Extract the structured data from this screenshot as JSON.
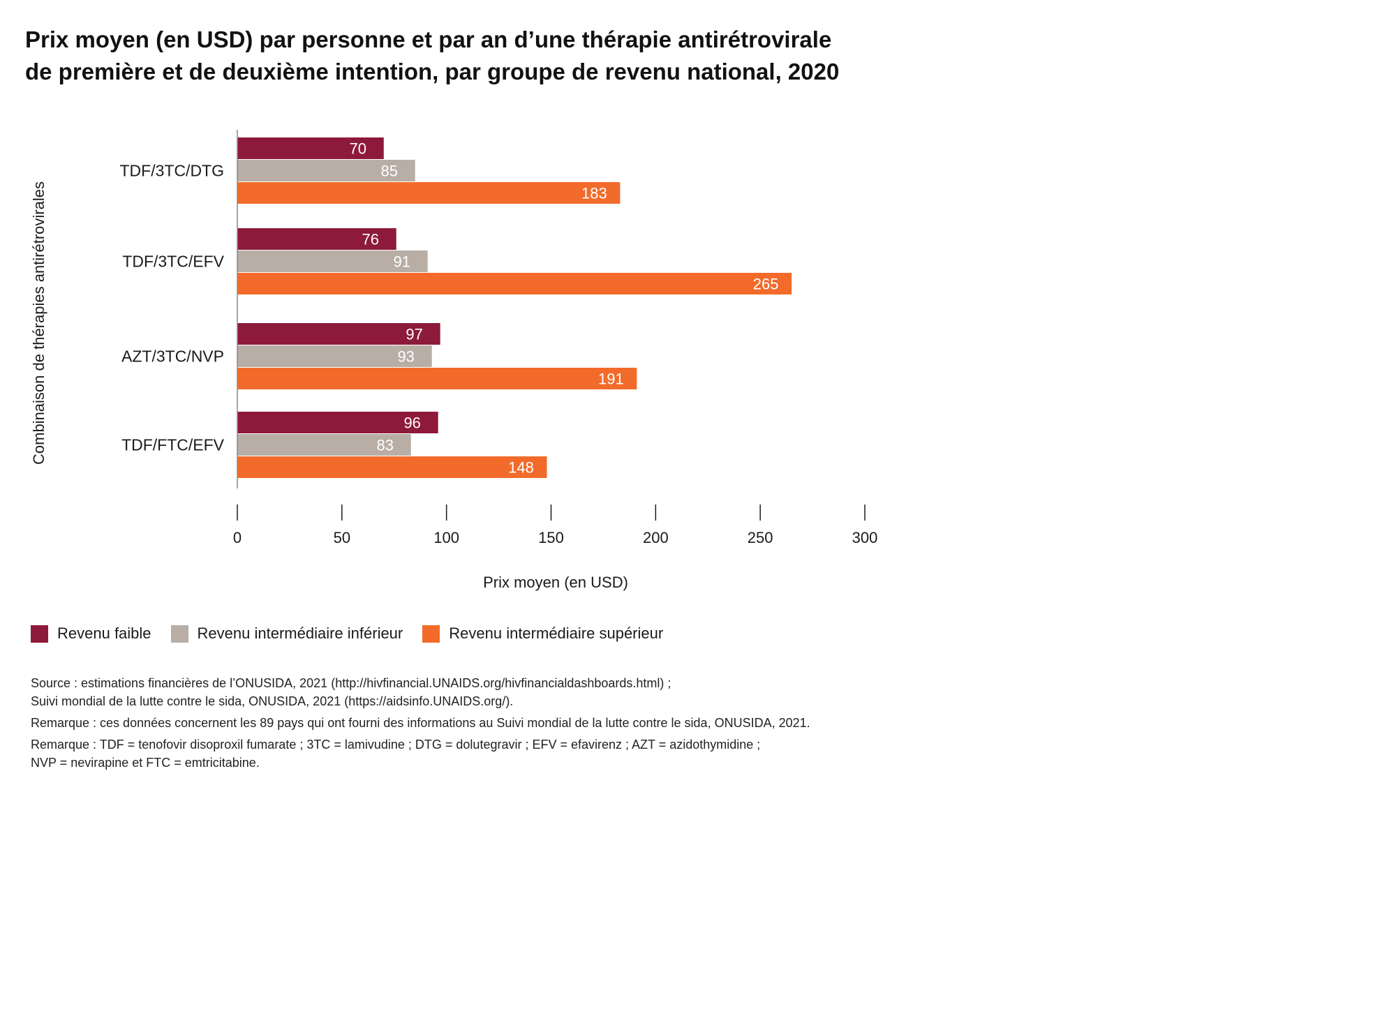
{
  "title": {
    "line1": "Prix moyen (en USD) par personne et par an d’une thérapie antirétrovirale",
    "line2": "de première et de deuxième intention, par groupe de revenu national, 2020"
  },
  "chart_data": {
    "type": "bar",
    "orientation": "horizontal",
    "categories": [
      "TDF/3TC/DTG",
      "TDF/3TC/EFV",
      "AZT/3TC/NVP",
      "TDF/FTC/EFV"
    ],
    "series": [
      {
        "name": "Revenu faible",
        "color": "#8e1a3b",
        "values": [
          70,
          76,
          97,
          96
        ]
      },
      {
        "name": "Revenu intermédiaire inférieur",
        "color": "#b8aea6",
        "values": [
          85,
          91,
          93,
          83
        ]
      },
      {
        "name": "Revenu intermédiaire supérieur",
        "color": "#f26b2a",
        "values": [
          183,
          265,
          191,
          148
        ]
      }
    ],
    "xlabel": "Prix moyen (en USD)",
    "ylabel": "Combinaison de thérapies antirétrovirales",
    "xlim": [
      0,
      300
    ],
    "xticks": [
      0,
      50,
      100,
      150,
      200,
      250,
      300
    ],
    "grid": false,
    "legend_position": "bottom-left"
  },
  "notes": {
    "source1": "Source : estimations financières de l’ONUSIDA, 2021 (http://hivfinancial.UNAIDS.org/hivfinancialdashboards.html) ;",
    "source2": "Suivi mondial de la lutte contre le sida, ONUSIDA, 2021 (https://aidsinfo.UNAIDS.org/).",
    "remark1": "Remarque : ces données concernent les 89 pays qui ont fourni des informations au Suivi mondial de la lutte contre le sida, ONUSIDA, 2021.",
    "remark2a": "Remarque : TDF = tenofovir disoproxil fumarate ; 3TC = lamivudine ; DTG = dolutegravir ; EFV = efavirenz ; AZT = azidothymidine ;",
    "remark2b": "NVP = nevirapine et FTC = emtricitabine."
  }
}
